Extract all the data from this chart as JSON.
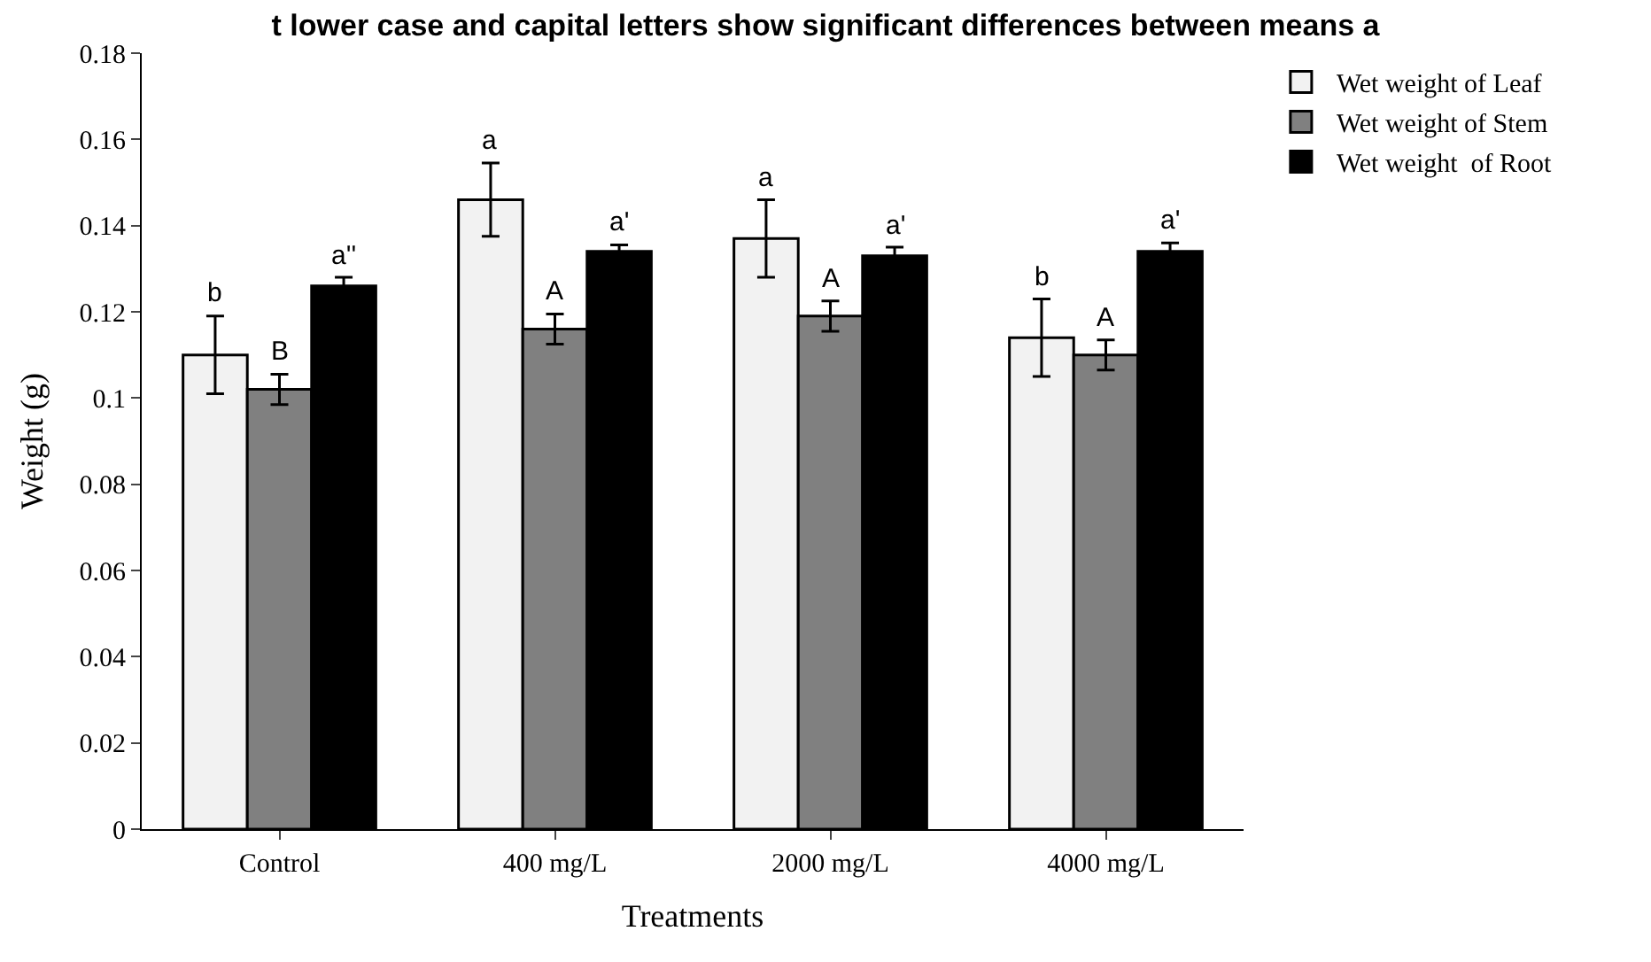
{
  "chart_data": {
    "type": "bar",
    "title": "t lower case and capital letters show significant differences between means a",
    "xlabel": "Treatments",
    "ylabel": "Weight (g)",
    "categories": [
      "Control",
      "400 mg/L",
      "2000 mg/L",
      "4000 mg/L"
    ],
    "series": [
      {
        "name": "Wet weight of Leaf",
        "color": "#f2f2f2",
        "values": [
          0.11,
          0.146,
          0.137,
          0.114
        ],
        "errors": [
          0.009,
          0.0085,
          0.009,
          0.009
        ]
      },
      {
        "name": "Wet weight of Stem",
        "color": "#808080",
        "values": [
          0.102,
          0.116,
          0.119,
          0.11
        ],
        "errors": [
          0.0035,
          0.0035,
          0.0035,
          0.0035
        ]
      },
      {
        "name": "Wet weight  of Root",
        "color": "#000000",
        "values": [
          0.126,
          0.134,
          0.133,
          0.134
        ],
        "errors": [
          0.002,
          0.0015,
          0.002,
          0.002
        ]
      }
    ],
    "annotations": [
      "b",
      "B",
      "a''",
      "a",
      "A",
      "a'",
      "a",
      "A",
      "a'",
      "b",
      "A",
      "a'"
    ],
    "ylim": [
      0,
      0.18
    ],
    "yticks": [
      0,
      0.02,
      0.04,
      0.06,
      0.08,
      0.1,
      0.12,
      0.14,
      0.16,
      0.18
    ],
    "legend": "top right"
  }
}
